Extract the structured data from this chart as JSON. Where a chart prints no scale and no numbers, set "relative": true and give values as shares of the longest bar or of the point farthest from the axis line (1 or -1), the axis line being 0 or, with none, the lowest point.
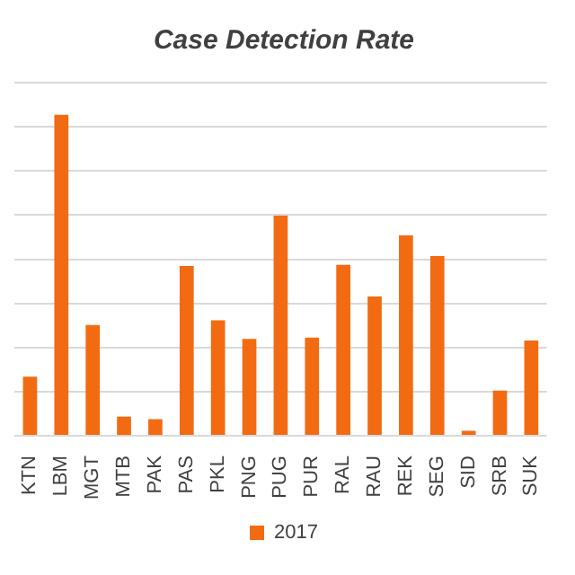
{
  "chart_data": {
    "type": "bar",
    "title": "Case Detection Rate",
    "relative": true,
    "grid": "y",
    "legend": "bottom",
    "categories": [
      "KTN",
      "LBM",
      "MGT",
      "MTB",
      "PAK",
      "PAS",
      "PKL",
      "PNG",
      "PUG",
      "PUR",
      "RAL",
      "RAU",
      "REK",
      "SEG",
      "SID",
      "SRB",
      "SUK"
    ],
    "series": [
      {
        "name": "2017",
        "color": "#f26b12",
        "values": [
          0.184,
          1,
          0.345,
          0.06,
          0.052,
          0.529,
          0.36,
          0.302,
          0.686,
          0.306,
          0.533,
          0.434,
          0.624,
          0.56,
          0.016,
          0.141,
          0.297
        ]
      }
    ]
  }
}
